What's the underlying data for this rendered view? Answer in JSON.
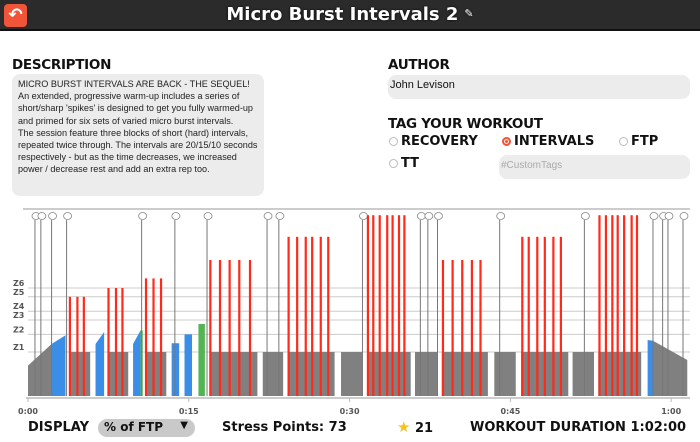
{
  "header": {
    "title": "Micro Burst Intervals 2",
    "back_icon": "back-arrow-icon",
    "edit_icon": "edit-icon"
  },
  "description": {
    "label": "DESCRIPTION",
    "lines": [
      "MICRO BURST INTERVALS ARE BACK - THE SEQUEL!",
      "An extended, progressive warm-up includes a series of short/sharp 'spikes' is designed to get you fully warmed-up and primed for six sets of varied micro burst intervals.",
      "The session feature three blocks of short (hard) intervals, repeated twice through. The intervals are 20/15/10 seconds respectively - but as the time decreases, we increased power / decrease rest and add an extra rep too."
    ]
  },
  "author": {
    "label": "AUTHOR",
    "value": "John Levison"
  },
  "tags": {
    "label": "TAG YOUR WORKOUT",
    "options": [
      {
        "label": "RECOVERY",
        "selected": false
      },
      {
        "label": "INTERVALS",
        "selected": true
      },
      {
        "label": "FTP",
        "selected": false
      },
      {
        "label": "TT",
        "selected": false
      }
    ],
    "custom_placeholder": "#CustomTags"
  },
  "chart": {
    "zones": [
      "Z1",
      "Z2",
      "Z3",
      "Z4",
      "Z5",
      "Z6"
    ],
    "zone_pct": [
      55,
      77,
      95,
      106,
      124,
      135
    ],
    "ticks": [
      {
        "label": "0:00",
        "min": 0
      },
      {
        "label": "0:15",
        "min": 15
      },
      {
        "label": "0:30",
        "min": 30
      },
      {
        "label": "0:45",
        "min": 45
      },
      {
        "label": "1:00",
        "min": 60
      }
    ],
    "duration_min": 62,
    "colors": {
      "recovery": "#808080",
      "endurance": "#3a8ee8",
      "tempo": "#52b552",
      "spike": "#ff2a1a"
    },
    "blocks": [
      {
        "s": 0,
        "e": 2.2,
        "p0": 38,
        "p1": 65,
        "c": "recovery"
      },
      {
        "s": 2.2,
        "e": 3.5,
        "p0": 65,
        "p1": 76,
        "c": "endurance"
      },
      {
        "s": 3.9,
        "e": 5.8,
        "p0": 55,
        "p1": 55,
        "c": "recovery"
      },
      {
        "s": 6.3,
        "e": 7.1,
        "p0": 65,
        "p1": 80,
        "c": "endurance"
      },
      {
        "s": 7.5,
        "e": 9.35,
        "p0": 55,
        "p1": 55,
        "c": "recovery"
      },
      {
        "s": 9.8,
        "e": 10.5,
        "p0": 65,
        "p1": 82,
        "c": "endurance"
      },
      {
        "s": 10.5,
        "e": 10.7,
        "p0": 82,
        "p1": 82,
        "c": "tempo"
      },
      {
        "s": 11.0,
        "e": 12.9,
        "p0": 55,
        "p1": 55,
        "c": "recovery"
      },
      {
        "s": 13.4,
        "e": 14.1,
        "p0": 66,
        "p1": 66,
        "c": "endurance"
      },
      {
        "s": 14.6,
        "e": 15.3,
        "p0": 77,
        "p1": 77,
        "c": "endurance"
      },
      {
        "s": 15.9,
        "e": 16.5,
        "p0": 90,
        "p1": 90,
        "c": "tempo"
      },
      {
        "s": 17.0,
        "e": 21.4,
        "p0": 55,
        "p1": 55,
        "c": "recovery"
      },
      {
        "s": 21.9,
        "e": 23.8,
        "p0": 55,
        "p1": 55,
        "c": "recovery"
      },
      {
        "s": 24.3,
        "e": 28.6,
        "p0": 55,
        "p1": 55,
        "c": "recovery"
      },
      {
        "s": 29.2,
        "e": 31.2,
        "p0": 55,
        "p1": 55,
        "c": "recovery"
      },
      {
        "s": 31.7,
        "e": 35.7,
        "p0": 55,
        "p1": 55,
        "c": "recovery"
      },
      {
        "s": 36.1,
        "e": 38.2,
        "p0": 55,
        "p1": 55,
        "c": "recovery"
      },
      {
        "s": 38.6,
        "e": 42.9,
        "p0": 55,
        "p1": 55,
        "c": "recovery"
      },
      {
        "s": 43.5,
        "e": 45.5,
        "p0": 55,
        "p1": 55,
        "c": "recovery"
      },
      {
        "s": 46.0,
        "e": 50.4,
        "p0": 55,
        "p1": 55,
        "c": "recovery"
      },
      {
        "s": 50.8,
        "e": 52.8,
        "p0": 55,
        "p1": 55,
        "c": "recovery"
      },
      {
        "s": 53.2,
        "e": 57.2,
        "p0": 55,
        "p1": 55,
        "c": "recovery"
      },
      {
        "s": 57.8,
        "e": 58.3,
        "p0": 70,
        "p1": 69,
        "c": "endurance"
      },
      {
        "s": 58.3,
        "e": 61.5,
        "p0": 69,
        "p1": 45,
        "c": "recovery"
      }
    ],
    "spikes": [
      {
        "p": 124,
        "t": [
          3.9,
          4.6,
          5.2
        ]
      },
      {
        "p": 135,
        "t": [
          7.5,
          8.2,
          8.8
        ]
      },
      {
        "p": 147,
        "t": [
          11.0,
          11.7,
          12.4
        ]
      },
      {
        "p": 170,
        "t": [
          17.0,
          17.9,
          18.8,
          19.7,
          20.7
        ]
      },
      {
        "p": 199,
        "t": [
          24.3,
          25.1,
          25.9,
          26.5,
          27.3,
          28.0
        ]
      },
      {
        "p": 226,
        "t": [
          31.7,
          32.2,
          32.8,
          33.5,
          34.0,
          34.6,
          35.1
        ]
      },
      {
        "p": 170,
        "t": [
          38.7,
          39.6,
          40.5,
          41.4,
          42.2
        ]
      },
      {
        "p": 199,
        "t": [
          46.1,
          46.7,
          47.5,
          48.2,
          49.0,
          49.7
        ]
      },
      {
        "p": 226,
        "t": [
          53.3,
          53.9,
          54.5,
          55.0,
          55.6,
          56.3,
          56.8
        ]
      }
    ],
    "messages": [
      0.65,
      1.2,
      2.2,
      3.6,
      10.6,
      13.7,
      16.7,
      22.3,
      23.4,
      31.2,
      36.6,
      37.3,
      38.2,
      44.0,
      51.9,
      58.3,
      59.2,
      59.7,
      61.1
    ]
  },
  "footer": {
    "display_label": "DISPLAY",
    "display_value": "% of FTP",
    "stress_points": "Stress Points: 73",
    "rating": "21",
    "duration": "WORKOUT DURATION 1:02:00"
  }
}
